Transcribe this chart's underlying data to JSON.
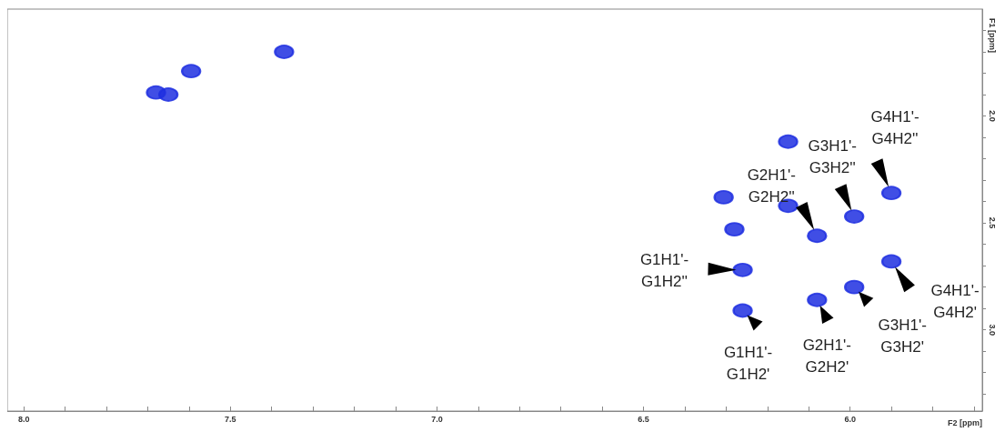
{
  "chart_data": {
    "type": "scatter",
    "xlabel": "F2 [ppm]",
    "ylabel": "F1 [ppm]",
    "x": [
      7.37,
      7.68,
      7.65,
      7.595,
      6.306,
      6.28,
      6.15,
      6.08,
      5.99,
      5.9,
      6.26,
      6.26,
      6.08,
      5.99,
      5.9,
      6.15
    ],
    "series": [
      {
        "color": "#1f2fe0",
        "values": [
          1.7,
          1.89,
          1.9,
          1.79,
          2.38,
          2.53,
          2.42,
          2.56,
          2.47,
          2.36,
          2.72,
          2.91,
          2.86,
          2.8,
          2.68,
          2.12
        ]
      }
    ],
    "marker": "circle",
    "xlim": [
      8.04,
      5.68
    ],
    "ylim": [
      3.38,
      1.5
    ],
    "xticks": [
      {
        "value": 8.0,
        "label": "8.0"
      },
      {
        "value": 7.9,
        "label": null
      },
      {
        "value": 7.8,
        "label": null
      },
      {
        "value": 7.7,
        "label": null
      },
      {
        "value": 7.6,
        "label": null
      },
      7.5,
      {
        "value": 7.4,
        "label": null
      },
      {
        "value": 7.3,
        "label": null
      },
      {
        "value": 7.2,
        "label": null
      },
      {
        "value": 7.1,
        "label": null
      },
      {
        "value": 7.0,
        "label": "7.0"
      },
      {
        "value": 6.9,
        "label": null
      },
      {
        "value": 6.8,
        "label": null
      },
      {
        "value": 6.7,
        "label": null
      },
      {
        "value": 6.6,
        "label": null
      },
      6.5,
      {
        "value": 6.4,
        "label": null
      },
      {
        "value": 6.3,
        "label": null
      },
      {
        "value": 6.2,
        "label": null
      },
      {
        "value": 6.1,
        "label": null
      },
      {
        "value": 6.0,
        "label": "6.0"
      },
      {
        "value": 5.9,
        "label": null
      },
      {
        "value": 5.8,
        "label": null
      },
      {
        "value": 5.7,
        "label": null
      }
    ],
    "yticks": [
      {
        "value": 1.6,
        "label": null
      },
      {
        "value": 1.7,
        "label": null
      },
      {
        "value": 1.8,
        "label": null
      },
      {
        "value": 1.9,
        "label": null
      },
      {
        "value": 2.0,
        "label": "2.0"
      },
      {
        "value": 2.1,
        "label": null
      },
      {
        "value": 2.2,
        "label": null
      },
      {
        "value": 2.3,
        "label": null
      },
      {
        "value": 2.4,
        "label": null
      },
      2.5,
      {
        "value": 2.6,
        "label": null
      },
      {
        "value": 2.7,
        "label": null
      },
      {
        "value": 2.8,
        "label": null
      },
      {
        "value": 2.9,
        "label": null
      },
      {
        "value": 3.0,
        "label": "3.0"
      },
      {
        "value": 3.1,
        "label": null
      },
      {
        "value": 3.2,
        "label": null
      },
      {
        "value": 3.3,
        "label": null
      }
    ],
    "grid": false,
    "annotations": [
      {
        "text": "G1H1'-\nG1H2'",
        "x": 6.26,
        "y": 2.91
      },
      {
        "text": "G1H1'-\nG1H2''",
        "x": 6.26,
        "y": 2.72
      },
      {
        "text": "G2H1'-\nG2H2'",
        "x": 6.08,
        "y": 2.86
      },
      {
        "text": "G2H1'-\nG2H2''",
        "x": 6.08,
        "y": 2.56
      },
      {
        "text": "G3H1'-\nG3H2'",
        "x": 5.99,
        "y": 2.8
      },
      {
        "text": "G3H1'-\nG3H2''",
        "x": 5.99,
        "y": 2.47
      },
      {
        "text": "G4H1'-\nG4H2'",
        "x": 5.9,
        "y": 2.68
      },
      {
        "text": "G4H1'-\nG4H2''",
        "x": 5.9,
        "y": 2.36
      }
    ]
  }
}
